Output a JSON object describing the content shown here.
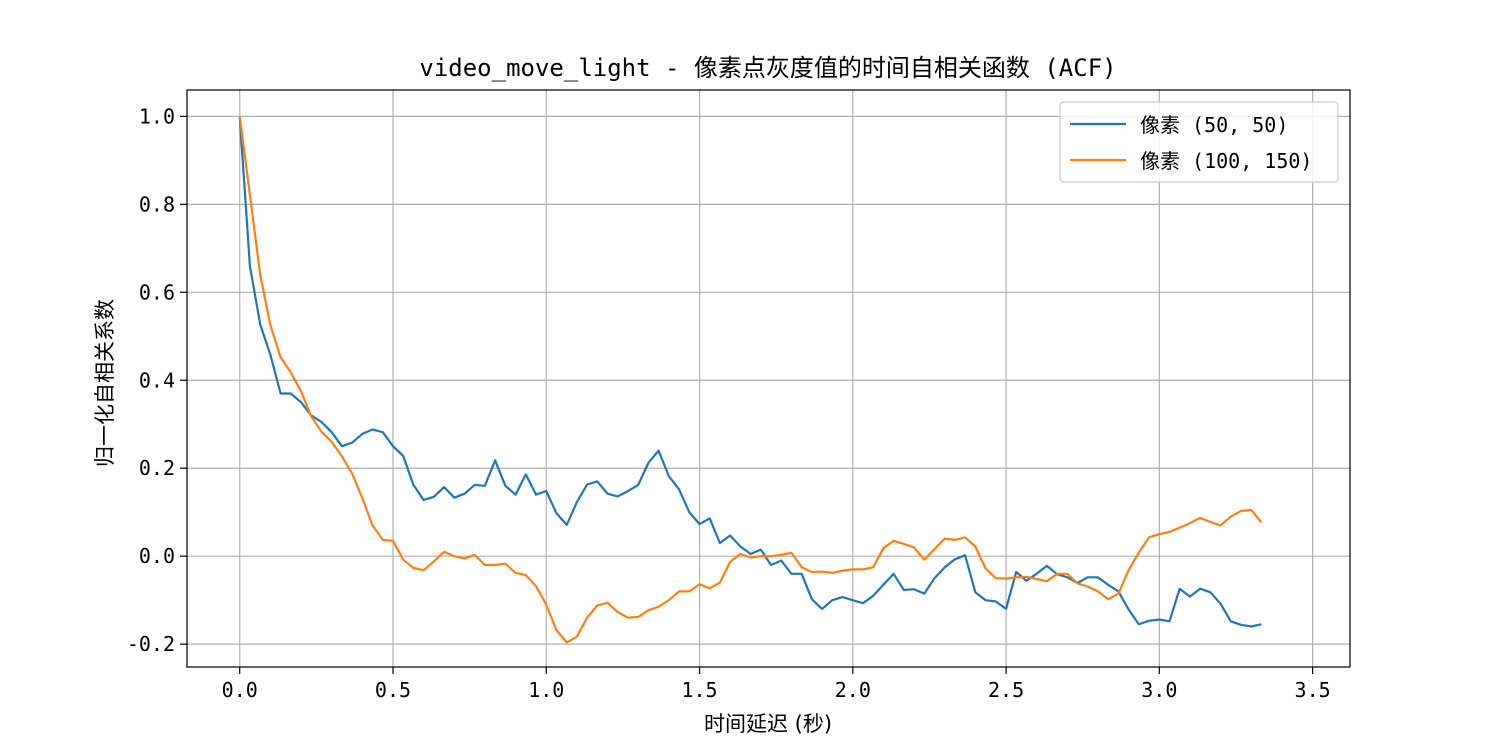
{
  "chart_data": {
    "type": "line",
    "title": "video_move_light - 像素点灰度值的时间自相关函数 (ACF)",
    "xlabel": "时间延迟 (秒)",
    "ylabel": "归一化自相关系数",
    "xlim": [
      -0.172,
      3.622
    ],
    "ylim": [
      -0.252,
      1.06
    ],
    "xticks": [
      0.0,
      0.5,
      1.0,
      1.5,
      2.0,
      2.5,
      3.0,
      3.5
    ],
    "xtick_labels": [
      "0.0",
      "0.5",
      "1.0",
      "1.5",
      "2.0",
      "2.5",
      "3.0",
      "3.5"
    ],
    "yticks": [
      -0.2,
      0.0,
      0.2,
      0.4,
      0.6,
      0.8,
      1.0
    ],
    "ytick_labels": [
      "-0.2",
      "0.0",
      "0.2",
      "0.4",
      "0.6",
      "0.8",
      "1.0"
    ],
    "grid": true,
    "legend_position": "top-right",
    "dx": 0.03333,
    "series": [
      {
        "name": "像素 (50, 50)",
        "color": "#1f77b4",
        "values": [
          1.0,
          0.66,
          0.527,
          0.458,
          0.37,
          0.37,
          0.35,
          0.32,
          0.305,
          0.282,
          0.25,
          0.258,
          0.278,
          0.288,
          0.282,
          0.25,
          0.228,
          0.162,
          0.128,
          0.135,
          0.157,
          0.133,
          0.142,
          0.162,
          0.16,
          0.218,
          0.16,
          0.14,
          0.186,
          0.14,
          0.148,
          0.098,
          0.071,
          0.123,
          0.163,
          0.17,
          0.142,
          0.136,
          0.148,
          0.162,
          0.212,
          0.24,
          0.182,
          0.152,
          0.1,
          0.073,
          0.086,
          0.03,
          0.047,
          0.022,
          0.005,
          0.015,
          -0.02,
          -0.01,
          -0.04,
          -0.04,
          -0.098,
          -0.12,
          -0.1,
          -0.093,
          -0.1,
          -0.107,
          -0.09,
          -0.065,
          -0.04,
          -0.077,
          -0.075,
          -0.085,
          -0.05,
          -0.025,
          -0.007,
          0.002,
          -0.082,
          -0.1,
          -0.103,
          -0.12,
          -0.036,
          -0.056,
          -0.04,
          -0.022,
          -0.041,
          -0.048,
          -0.061,
          -0.048,
          -0.048,
          -0.065,
          -0.08,
          -0.121,
          -0.155,
          -0.147,
          -0.144,
          -0.148,
          -0.074,
          -0.092,
          -0.074,
          -0.082,
          -0.108,
          -0.148,
          -0.156,
          -0.16,
          -0.155
        ]
      },
      {
        "name": "像素 (100, 150)",
        "color": "#ff7f0e",
        "values": [
          1.0,
          0.822,
          0.64,
          0.525,
          0.452,
          0.418,
          0.375,
          0.318,
          0.283,
          0.26,
          0.227,
          0.188,
          0.132,
          0.07,
          0.037,
          0.035,
          -0.008,
          -0.027,
          -0.032,
          -0.012,
          0.01,
          0.0,
          -0.005,
          0.003,
          -0.02,
          -0.02,
          -0.017,
          -0.038,
          -0.043,
          -0.068,
          -0.11,
          -0.168,
          -0.196,
          -0.183,
          -0.14,
          -0.112,
          -0.106,
          -0.127,
          -0.14,
          -0.138,
          -0.123,
          -0.115,
          -0.1,
          -0.08,
          -0.08,
          -0.064,
          -0.073,
          -0.06,
          -0.013,
          0.005,
          -0.003,
          0.0,
          0.0,
          0.003,
          0.008,
          -0.025,
          -0.036,
          -0.035,
          -0.038,
          -0.033,
          -0.03,
          -0.03,
          -0.025,
          0.018,
          0.035,
          0.028,
          0.02,
          -0.008,
          0.016,
          0.04,
          0.037,
          0.043,
          0.022,
          -0.028,
          -0.05,
          -0.051,
          -0.048,
          -0.047,
          -0.052,
          -0.057,
          -0.04,
          -0.04,
          -0.062,
          -0.069,
          -0.08,
          -0.098,
          -0.085,
          -0.032,
          0.008,
          0.043,
          0.05,
          0.055,
          0.065,
          0.075,
          0.087,
          0.078,
          0.07,
          0.09,
          0.103,
          0.105,
          0.077
        ]
      }
    ]
  }
}
